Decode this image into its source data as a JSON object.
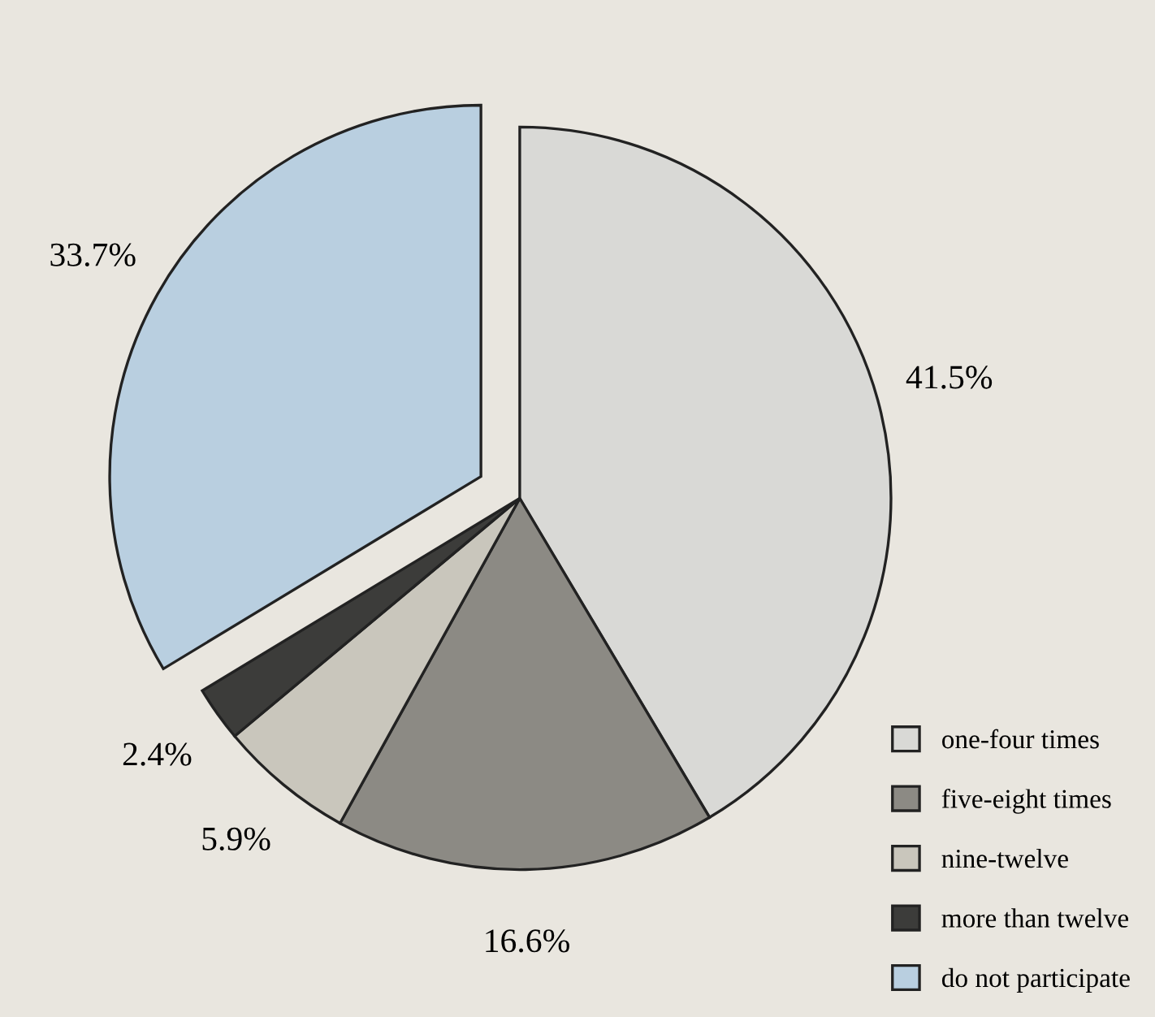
{
  "chart_data": {
    "type": "pie",
    "categories": [
      "one-four times",
      "five-eight times",
      "nine-twelve",
      "more than twelve",
      "do not participate"
    ],
    "values": [
      41.5,
      16.6,
      5.9,
      2.4,
      33.7
    ],
    "value_labels": [
      "41.5%",
      "16.6%",
      "5.9%",
      "2.4%",
      "33.7%"
    ],
    "colors": [
      "#d9d9d6",
      "#8c8a84",
      "#c9c6bc",
      "#3c3c3a",
      "#b9cfe0"
    ],
    "legend": "bottom right"
  }
}
